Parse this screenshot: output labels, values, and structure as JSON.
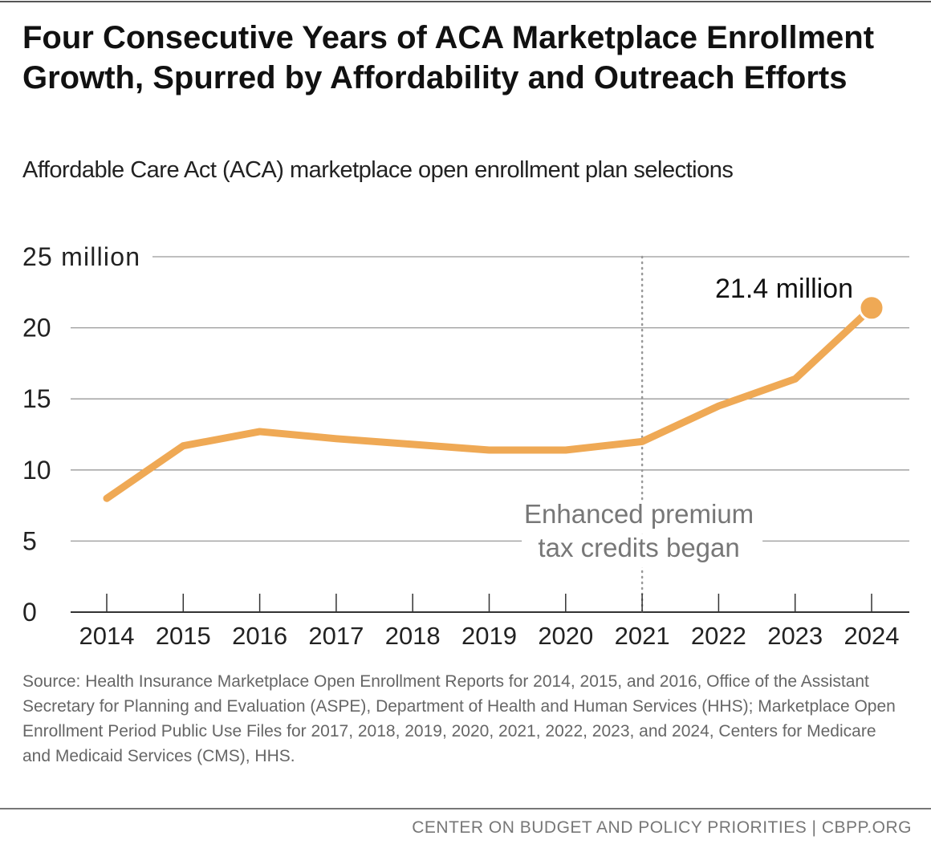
{
  "title": "Four Consecutive Years of ACA Marketplace Enrollment Growth, Spurred by Affordability and Outreach Efforts",
  "subtitle": "Affordable Care Act (ACA) marketplace open enrollment plan selections",
  "source": "Source: Health Insurance Marketplace Open Enrollment Reports for 2014, 2015, and 2016, Office of the Assistant Secretary for Planning and Evaluation (ASPE), Department of Health and Human Services (HHS); Marketplace Open Enrollment Period Public Use Files for 2017, 2018, 2019, 2020, 2021, 2022, 2023, and 2024, Centers for Medicare and Medicaid Services (CMS), HHS.",
  "footer": "CENTER ON BUDGET AND POLICY PRIORITIES | CBPP.ORG",
  "chart_data": {
    "type": "line",
    "x": [
      "2014",
      "2015",
      "2016",
      "2017",
      "2018",
      "2019",
      "2020",
      "2021",
      "2022",
      "2023",
      "2024"
    ],
    "series": [
      {
        "values": [
          8.0,
          11.7,
          12.7,
          12.2,
          11.8,
          11.4,
          11.4,
          12.0,
          14.5,
          16.4,
          21.4
        ]
      }
    ],
    "ylim": [
      0,
      25
    ],
    "yticks": [
      0,
      5,
      10,
      15,
      20,
      25
    ],
    "ytick_labels": [
      "0",
      "5",
      "10",
      "15",
      "20",
      "25 million"
    ],
    "grid": true,
    "color": "#EFA955",
    "annotations": [
      {
        "text": "21.4 million",
        "x": "2024",
        "y": 21.4
      },
      {
        "text_lines": [
          "Enhanced premium",
          "tax credits began"
        ],
        "x": "2021",
        "type": "vertical-dotted-line"
      }
    ]
  }
}
